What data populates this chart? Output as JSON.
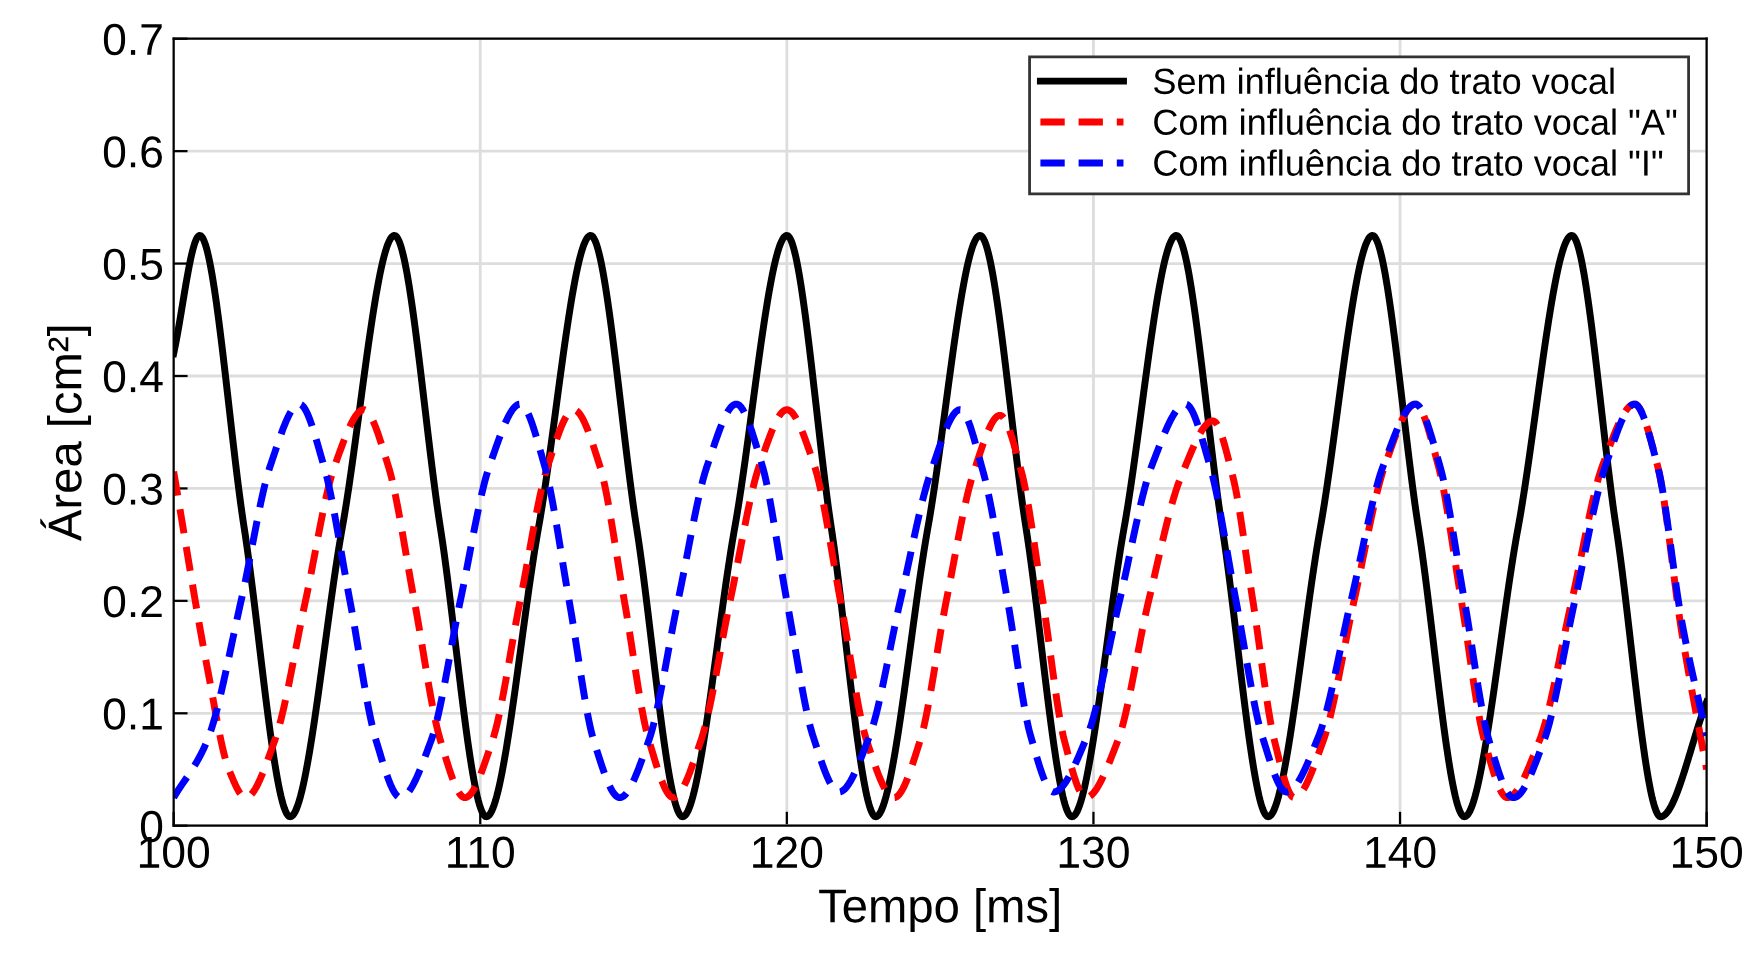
{
  "chart_data": {
    "type": "line",
    "xlabel": "Tempo [ms]",
    "ylabel": "Área [cm²]",
    "xlim": [
      100,
      150
    ],
    "ylim": [
      0,
      0.7
    ],
    "xticks": [
      100,
      110,
      120,
      130,
      140,
      150
    ],
    "yticks": [
      0,
      0.1,
      0.2,
      0.3,
      0.4,
      0.5,
      0.6,
      0.7
    ],
    "grid": true,
    "legend": "top right",
    "marker": "none",
    "series": [
      {
        "name": "Sem influência do trato vocal",
        "color": "#000000",
        "line_style": "solid",
        "x": [
          100,
          100.85,
          102.3,
          103.8,
          105.5,
          107.2,
          108.7,
          110.2,
          111.9,
          113.6,
          115.1,
          116.6,
          118.3,
          120.0,
          121.45,
          122.9,
          124.6,
          126.3,
          127.8,
          129.3,
          131.0,
          132.7,
          134.2,
          135.7,
          137.4,
          139.1,
          140.6,
          142.1,
          143.85,
          145.6,
          147.05,
          148.5,
          150
        ],
        "values": [
          0.42,
          0.525,
          0.265,
          0.008,
          0.265,
          0.525,
          0.265,
          0.008,
          0.265,
          0.525,
          0.265,
          0.008,
          0.265,
          0.525,
          0.265,
          0.008,
          0.265,
          0.525,
          0.265,
          0.008,
          0.265,
          0.525,
          0.265,
          0.008,
          0.265,
          0.525,
          0.265,
          0.008,
          0.265,
          0.525,
          0.265,
          0.008,
          0.11
        ]
      },
      {
        "name": "Com influência do trato vocal \"A\"",
        "color": "#ff0000",
        "line_style": "dashed",
        "x": [
          100,
          101.1,
          101.8,
          102.35,
          103.3,
          104.3,
          105.25,
          106.2,
          107.0,
          107.85,
          108.7,
          109.5,
          110.4,
          111.3,
          112.2,
          113.05,
          113.9,
          114.7,
          115.5,
          116.3,
          117.2,
          118.15,
          119.1,
          120.0,
          120.9,
          121.75,
          122.6,
          123.5,
          124.35,
          125.2,
          126.1,
          126.95,
          127.65,
          128.35,
          129.05,
          129.75,
          130.8,
          131.8,
          132.85,
          133.9,
          134.55,
          135.2,
          135.9,
          136.55,
          137.5,
          138.5,
          139.5,
          140.5,
          141.25,
          142.0,
          142.75,
          143.5,
          144.55,
          145.6,
          146.6,
          147.65,
          148.4,
          149.2,
          150
        ],
        "values": [
          0.315,
          0.14,
          0.05,
          0.025,
          0.076,
          0.2,
          0.32,
          0.37,
          0.32,
          0.2,
          0.076,
          0.025,
          0.076,
          0.2,
          0.32,
          0.37,
          0.32,
          0.2,
          0.076,
          0.025,
          0.076,
          0.2,
          0.32,
          0.37,
          0.32,
          0.2,
          0.076,
          0.025,
          0.076,
          0.2,
          0.315,
          0.365,
          0.315,
          0.2,
          0.076,
          0.025,
          0.076,
          0.2,
          0.31,
          0.36,
          0.31,
          0.2,
          0.076,
          0.025,
          0.076,
          0.2,
          0.32,
          0.375,
          0.32,
          0.2,
          0.076,
          0.025,
          0.076,
          0.2,
          0.32,
          0.375,
          0.32,
          0.17,
          0.05
        ]
      },
      {
        "name": "Com influência do trato vocal \"I\"",
        "color": "#0000ff",
        "line_style": "dashed",
        "x": [
          100,
          101.1,
          102.2,
          103.15,
          104.1,
          104.9,
          105.75,
          106.6,
          107.4,
          108.4,
          109.35,
          110.3,
          111.3,
          112.1,
          112.9,
          113.7,
          114.55,
          115.5,
          116.45,
          117.4,
          118.35,
          119.2,
          120.0,
          120.85,
          121.7,
          122.7,
          123.7,
          124.7,
          125.65,
          126.4,
          127.2,
          127.95,
          128.7,
          129.8,
          130.85,
          131.9,
          133.0,
          133.8,
          134.65,
          135.5,
          136.3,
          137.35,
          138.4,
          139.45,
          140.5,
          141.3,
          142.1,
          142.9,
          143.7,
          144.7,
          145.7,
          146.7,
          147.65,
          148.4,
          149.2,
          150
        ],
        "values": [
          0.025,
          0.076,
          0.2,
          0.32,
          0.375,
          0.32,
          0.2,
          0.076,
          0.025,
          0.076,
          0.2,
          0.32,
          0.375,
          0.32,
          0.2,
          0.076,
          0.025,
          0.076,
          0.2,
          0.32,
          0.375,
          0.32,
          0.2,
          0.08,
          0.03,
          0.08,
          0.2,
          0.315,
          0.37,
          0.315,
          0.2,
          0.08,
          0.03,
          0.08,
          0.2,
          0.32,
          0.375,
          0.32,
          0.2,
          0.08,
          0.03,
          0.08,
          0.2,
          0.32,
          0.375,
          0.32,
          0.2,
          0.076,
          0.025,
          0.076,
          0.2,
          0.32,
          0.375,
          0.32,
          0.18,
          0.08
        ]
      }
    ]
  }
}
